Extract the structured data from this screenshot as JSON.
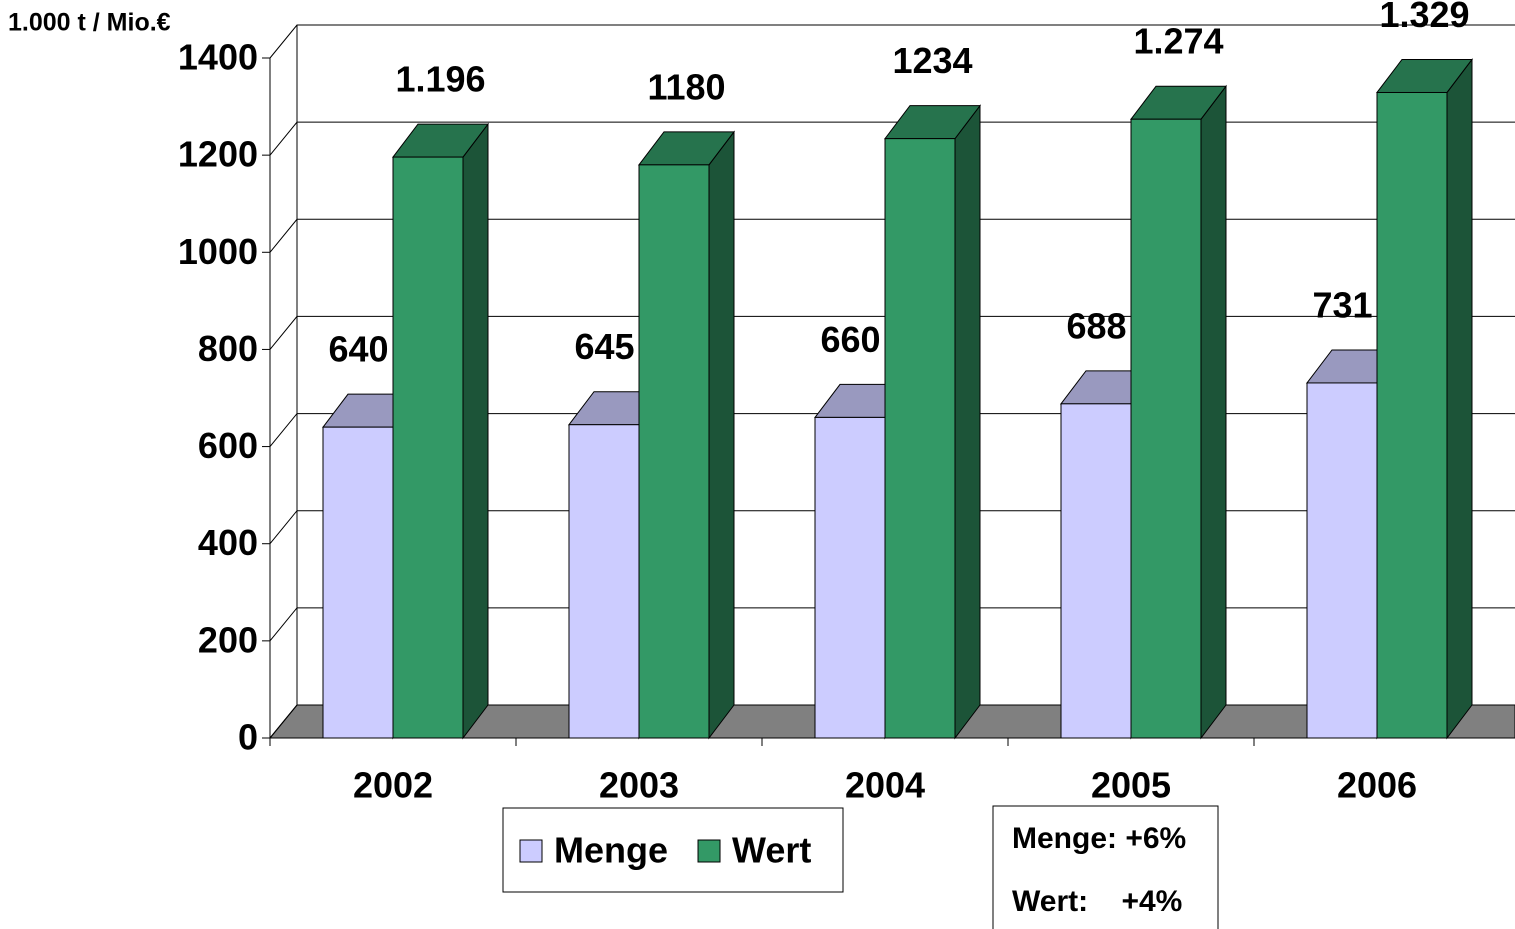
{
  "chart_data": {
    "type": "bar3d",
    "y_axis_label": "1.000 t / Mio.€",
    "categories": [
      "2002",
      "2003",
      "2004",
      "2005",
      "2006"
    ],
    "series": [
      {
        "name": "Menge",
        "color": "#ccccff",
        "values": [
          640,
          645,
          660,
          688,
          731
        ]
      },
      {
        "name": "Wert",
        "color": "#339966",
        "values": [
          1196,
          1180,
          1234,
          1274,
          1329
        ],
        "value_labels": [
          "1.196",
          "1180",
          "1234",
          "1.274",
          "1.329"
        ]
      }
    ],
    "ylim": [
      0,
      1400
    ],
    "yticks": [
      0,
      200,
      400,
      600,
      800,
      1000,
      1200,
      1400
    ],
    "grid": true,
    "annotations": [
      "Menge: +6%",
      "Wert:    +4%"
    ]
  }
}
